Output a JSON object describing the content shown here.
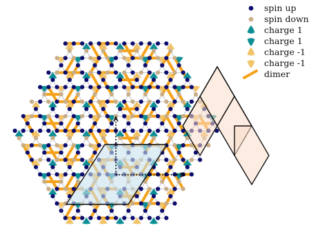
{
  "colors": {
    "spin_up": "#0d0d6e",
    "spin_down": "#c8ad86",
    "charge_plus": "#0e8f96",
    "charge_minus": "#f2c46a",
    "dimer": "#f5a21b",
    "bond": "#c9cbd3",
    "unit_cell_fill": "#c9e1ec",
    "supercell_fill": "#f9dcc8",
    "outline": "#111111"
  },
  "legend": {
    "items": [
      {
        "label": "spin up",
        "symbol": "spin-up"
      },
      {
        "label": "spin down",
        "symbol": "spin-down"
      },
      {
        "label": "charge 1",
        "symbol": "charge-plus-up"
      },
      {
        "label": "charge 1",
        "symbol": "charge-plus-down"
      },
      {
        "label": "charge -1",
        "symbol": "charge-minus-up"
      },
      {
        "label": "charge -1",
        "symbol": "charge-minus-down"
      },
      {
        "label": "dimer",
        "symbol": "dimer"
      }
    ]
  }
}
